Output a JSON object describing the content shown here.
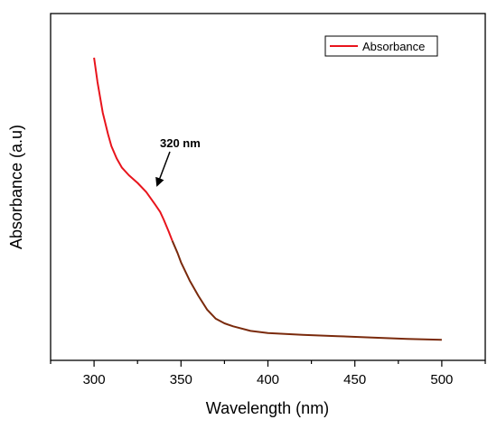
{
  "chart_data": {
    "type": "line",
    "title": "",
    "xlabel": "Wavelength (nm)",
    "ylabel": "Absorbance (a.u)",
    "xlim": [
      275,
      525
    ],
    "ylim": [
      0,
      1
    ],
    "x_ticks": [
      300,
      350,
      400,
      450,
      500
    ],
    "x_tick_labels": [
      "300",
      "350",
      "400",
      "450",
      "500"
    ],
    "y_ticks_labeled": false,
    "grid": false,
    "legend_placement": "top-right",
    "colors": {
      "series": "#e8141c",
      "tail": "#7a2a0c",
      "axis": "#000000"
    },
    "series": [
      {
        "name": "Absorbance",
        "x": [
          300,
          302,
          305,
          308,
          310,
          313,
          316,
          320,
          325,
          330,
          335,
          338,
          340,
          343,
          345,
          348,
          350,
          355,
          360,
          365,
          370,
          375,
          380,
          390,
          400,
          420,
          440,
          460,
          480,
          500
        ],
        "y": [
          0.95,
          0.87,
          0.77,
          0.7,
          0.66,
          0.62,
          0.59,
          0.565,
          0.54,
          0.51,
          0.47,
          0.445,
          0.42,
          0.38,
          0.35,
          0.31,
          0.28,
          0.22,
          0.17,
          0.125,
          0.095,
          0.08,
          0.07,
          0.055,
          0.048,
          0.042,
          0.038,
          0.033,
          0.029,
          0.026
        ]
      }
    ],
    "annotations": [
      {
        "text": "320 nm",
        "x": 335,
        "y": 0.48
      }
    ]
  }
}
